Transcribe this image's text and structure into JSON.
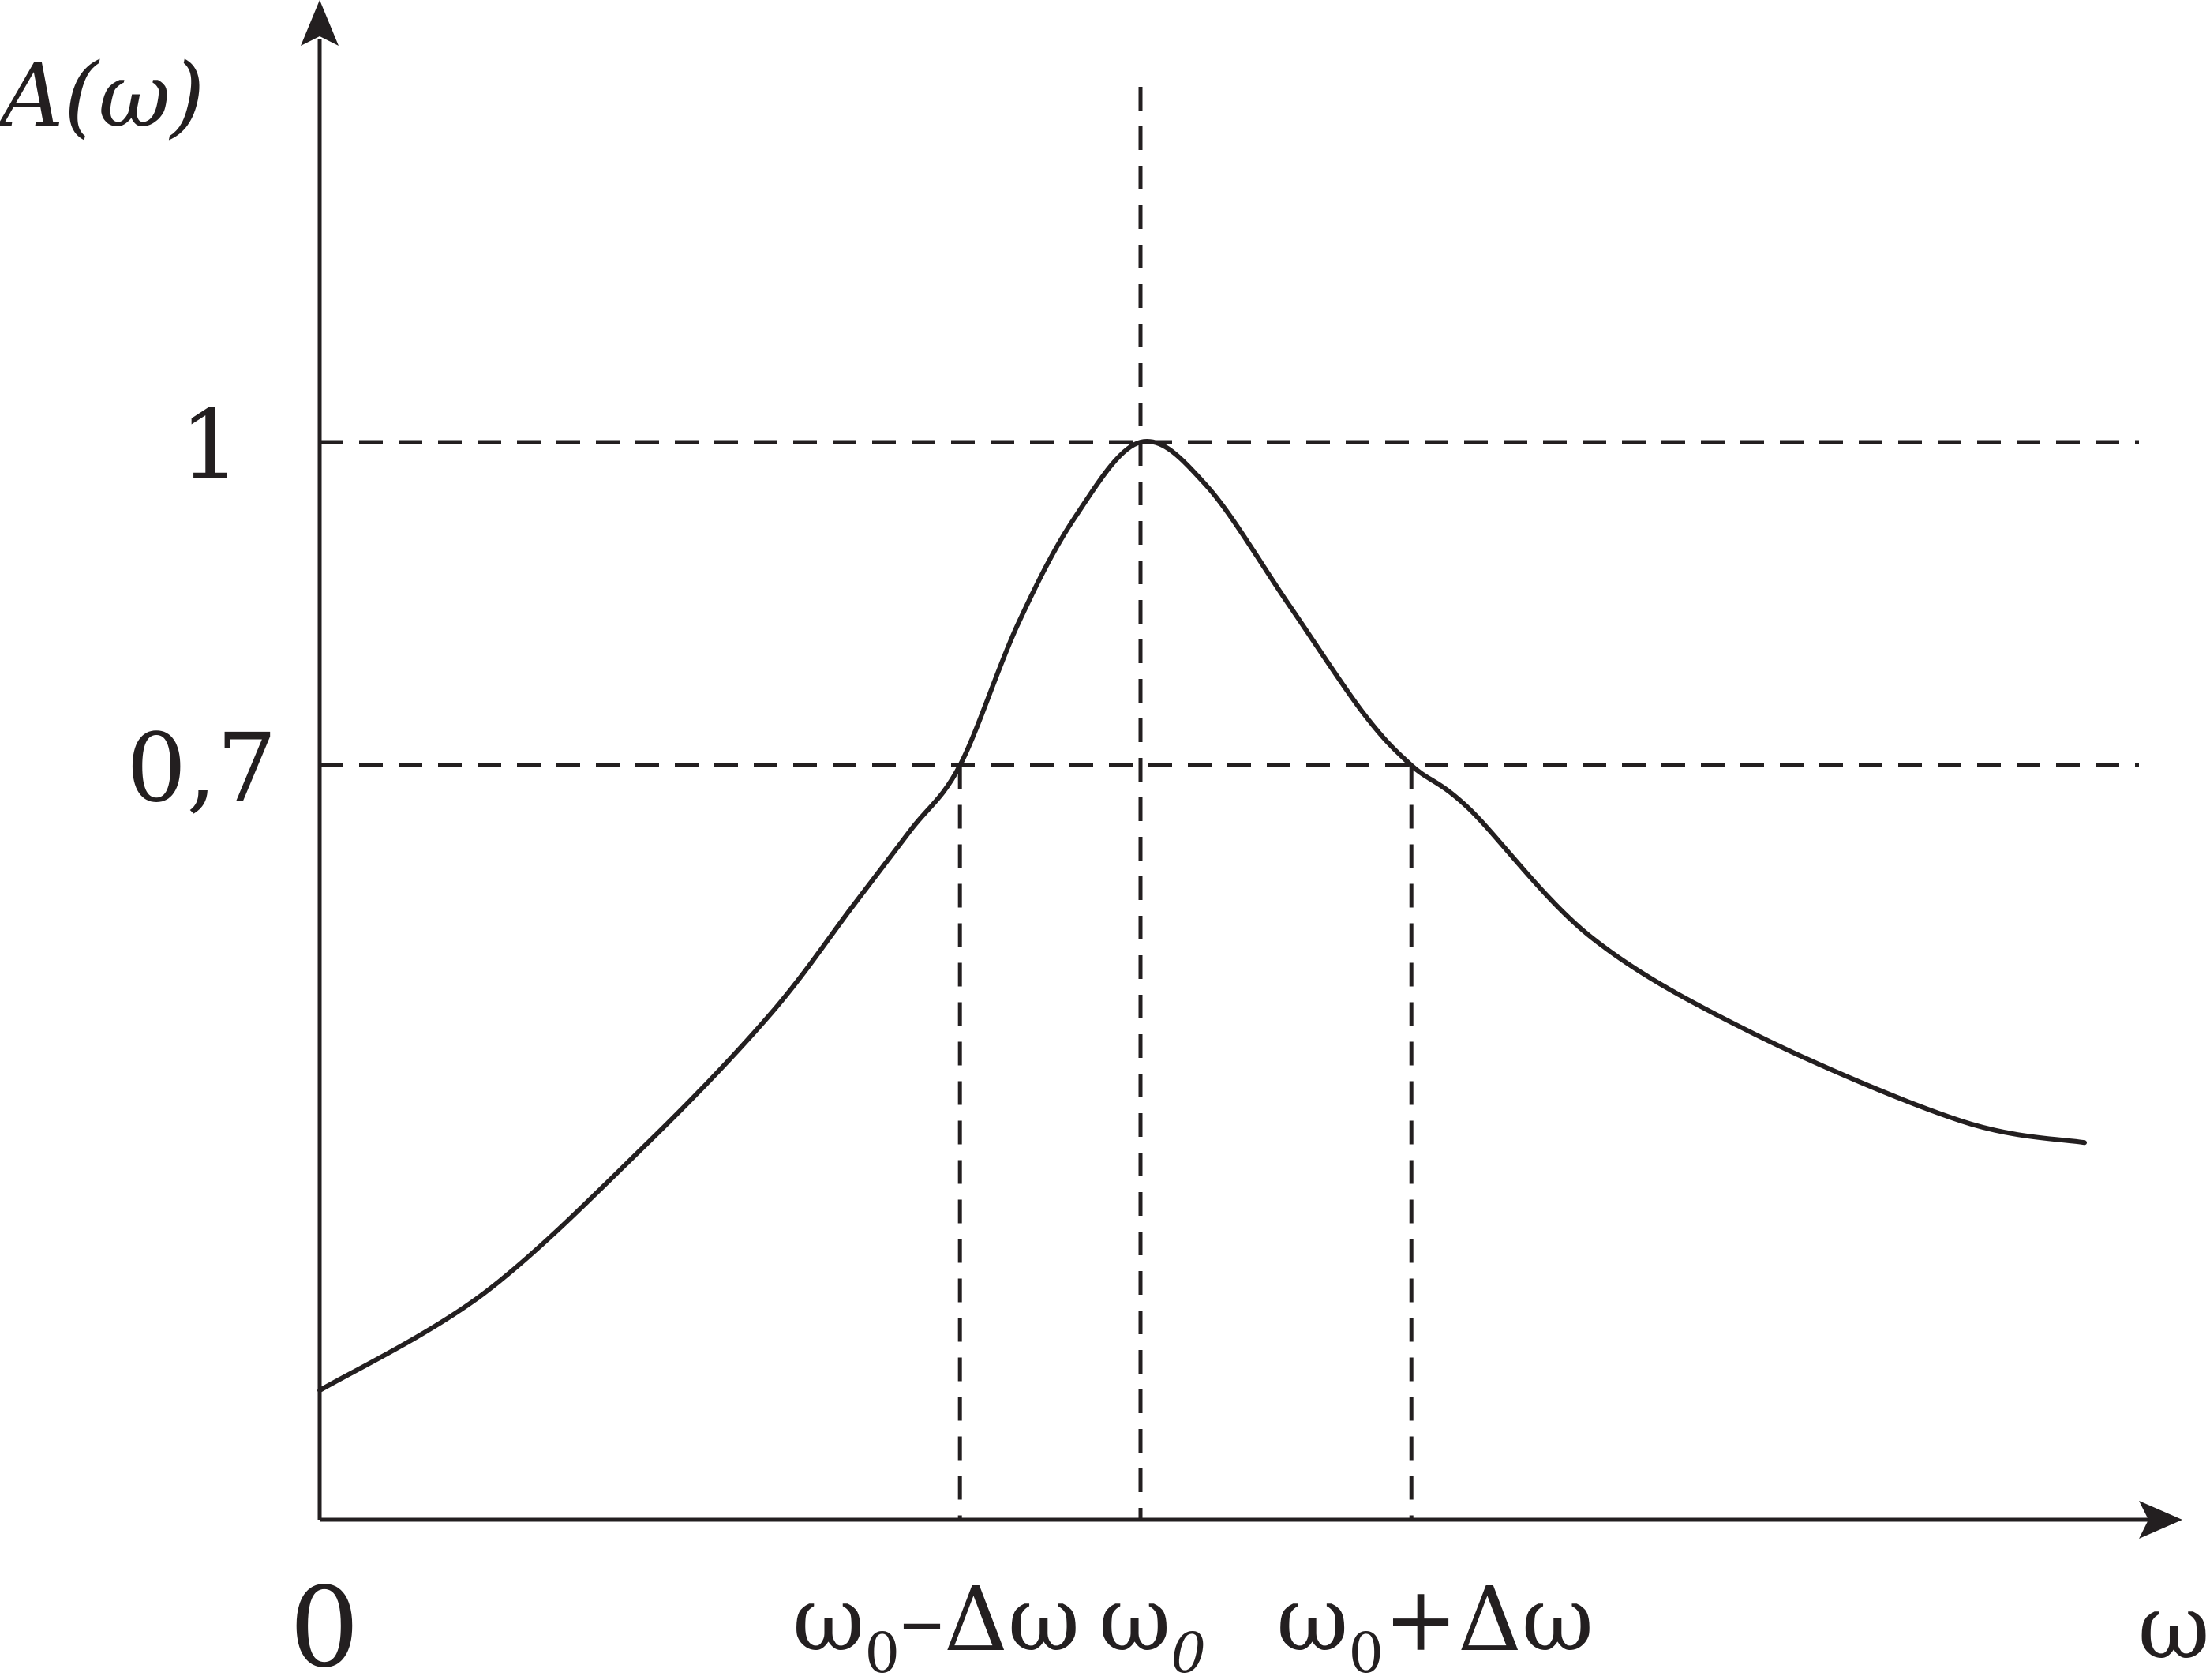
{
  "chart_data": {
    "type": "line",
    "ylabel": "A(ω)",
    "xlabel": "ω",
    "xticks": {
      "origin": "0",
      "left_band": {
        "base": "ω",
        "sub": "0",
        "rest": "–Δω"
      },
      "center": {
        "base": "ω",
        "sub": "0",
        "rest": ""
      },
      "right_band": {
        "base": "ω",
        "sub": "0",
        "rest": "+Δω"
      }
    },
    "yticks": [
      "1",
      "0,7"
    ],
    "x_positions": {
      "origin": 0,
      "left_band": 0.78,
      "center": 1.0,
      "right_band": 1.33
    },
    "xlim": [
      0,
      2.5
    ],
    "ylim": [
      0,
      1.1
    ],
    "reference_levels": [
      1.0,
      0.7
    ],
    "series": [
      {
        "x": [
          0,
          0.2,
          0.4,
          0.55,
          0.65,
          0.72,
          0.78,
          0.85,
          0.92,
          1.0,
          1.08,
          1.18,
          1.27,
          1.33,
          1.4,
          1.55,
          1.75,
          2.0,
          2.15
        ],
        "y": [
          0.12,
          0.21,
          0.35,
          0.47,
          0.57,
          0.64,
          0.7,
          0.83,
          0.93,
          1.0,
          0.96,
          0.85,
          0.75,
          0.7,
          0.66,
          0.54,
          0.45,
          0.37,
          0.35
        ]
      }
    ],
    "grid": false
  }
}
